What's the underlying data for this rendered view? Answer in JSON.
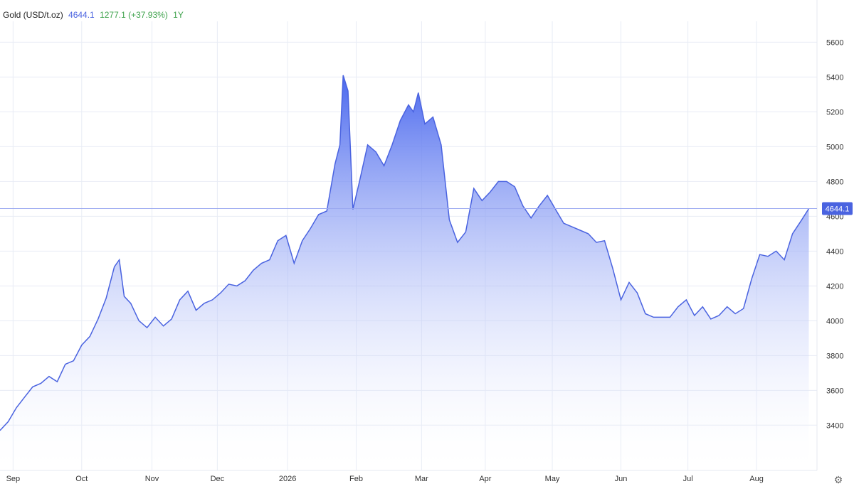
{
  "header": {
    "title": "Gold (USD/t.oz)",
    "price": "4644.1",
    "change": "1277.1 (+37.93%)",
    "period": "1Y"
  },
  "icons": {
    "settings": "gear-icon"
  },
  "colors": {
    "line": "#4a63e0",
    "area_top": "#4a68ee",
    "area_bottom": "#ffffff",
    "grid": "#e8ecf5",
    "price_label_bg": "#4a63e0",
    "price_line": "#9aa8f0"
  },
  "chart_data": {
    "type": "area",
    "title": "Gold (USD/t.oz)",
    "xlabel": "",
    "ylabel": "",
    "ylim": [
      3140,
      5720
    ],
    "xlim": [
      0,
      50
    ],
    "grid": true,
    "y_ticks": [
      3400,
      3600,
      3800,
      4000,
      4200,
      4400,
      4600,
      4800,
      5000,
      5200,
      5400,
      5600
    ],
    "x_ticks": [
      {
        "label": "Sep",
        "x": 0.8
      },
      {
        "label": "Oct",
        "x": 5.0
      },
      {
        "label": "Nov",
        "x": 9.3
      },
      {
        "label": "Dec",
        "x": 13.3
      },
      {
        "label": "2026",
        "x": 17.6
      },
      {
        "label": "Feb",
        "x": 21.8
      },
      {
        "label": "Mar",
        "x": 25.8
      },
      {
        "label": "Apr",
        "x": 29.7
      },
      {
        "label": "May",
        "x": 33.8
      },
      {
        "label": "Jun",
        "x": 38.0
      },
      {
        "label": "Jul",
        "x": 42.1
      },
      {
        "label": "Aug",
        "x": 46.3
      }
    ],
    "last_value_label": "4644.1",
    "last_value": 4644.1,
    "x": [
      0,
      0.5,
      1,
      1.5,
      2,
      2.5,
      3,
      3.5,
      4,
      4.5,
      5,
      5.5,
      6,
      6.5,
      7,
      7.3,
      7.6,
      8,
      8.5,
      9,
      9.5,
      10,
      10.5,
      11,
      11.5,
      12,
      12.5,
      13,
      13.5,
      14,
      14.5,
      15,
      15.5,
      16,
      16.5,
      17,
      17.5,
      18,
      18.5,
      19,
      19.5,
      20,
      20.5,
      20.8,
      21,
      21.3,
      21.6,
      22,
      22.5,
      23,
      23.5,
      24,
      24.5,
      25,
      25.3,
      25.6,
      26,
      26.5,
      27,
      27.5,
      28,
      28.5,
      29,
      29.5,
      30,
      30.5,
      31,
      31.5,
      32,
      32.5,
      33,
      33.5,
      34,
      34.5,
      35,
      35.5,
      36,
      36.5,
      37,
      37.5,
      38,
      38.5,
      39,
      39.5,
      40,
      40.5,
      41,
      41.5,
      42,
      42.5,
      43,
      43.5,
      44,
      44.5,
      45,
      45.5,
      46,
      46.5,
      47,
      47.5,
      48,
      48.5,
      49,
      49.5
    ],
    "values": [
      3370,
      3420,
      3500,
      3560,
      3620,
      3640,
      3680,
      3650,
      3750,
      3770,
      3860,
      3910,
      4010,
      4130,
      4310,
      4350,
      4140,
      4100,
      4000,
      3960,
      4020,
      3970,
      4010,
      4120,
      4170,
      4060,
      4100,
      4120,
      4160,
      4210,
      4200,
      4230,
      4290,
      4330,
      4350,
      4460,
      4490,
      4330,
      4460,
      4530,
      4610,
      4630,
      4900,
      5010,
      5410,
      5320,
      4640,
      4800,
      5010,
      4970,
      4890,
      5010,
      5150,
      5240,
      5200,
      5310,
      5130,
      5170,
      5010,
      4580,
      4450,
      4510,
      4760,
      4690,
      4740,
      4800,
      4800,
      4770,
      4660,
      4590,
      4660,
      4720,
      4640,
      4560,
      4540,
      4520,
      4500,
      4450,
      4460,
      4300,
      4120,
      4220,
      4160,
      4040,
      4020,
      4020,
      4020,
      4080,
      4120,
      4030,
      4080,
      4010,
      4030,
      4080,
      4040,
      4070,
      4240,
      4380,
      4370,
      4400,
      4350,
      4500,
      4570,
      4644.1
    ]
  }
}
